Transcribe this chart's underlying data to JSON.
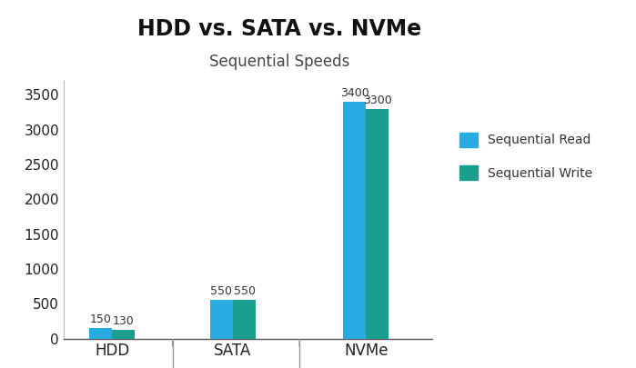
{
  "title": "HDD vs. SATA vs. NVMe",
  "subtitle": "Sequential Speeds",
  "categories": [
    "HDD",
    "SATA",
    "NVMe"
  ],
  "read_values": [
    150,
    550,
    3400
  ],
  "write_values": [
    130,
    550,
    3300
  ],
  "read_color": "#29ABE2",
  "write_color": "#1A9E8E",
  "ylim": [
    0,
    3700
  ],
  "yticks": [
    0,
    500,
    1000,
    1500,
    2000,
    2500,
    3000,
    3500
  ],
  "legend_labels": [
    "Sequential Read",
    "Sequential Write"
  ],
  "bar_width": 0.38,
  "label_fontsize": 9.0,
  "title_fontsize": 17,
  "subtitle_fontsize": 12,
  "tick_fontsize": 11,
  "background_color": "#ffffff",
  "divider_color": "#999999",
  "group_positions": [
    1.0,
    3.0,
    5.2
  ]
}
